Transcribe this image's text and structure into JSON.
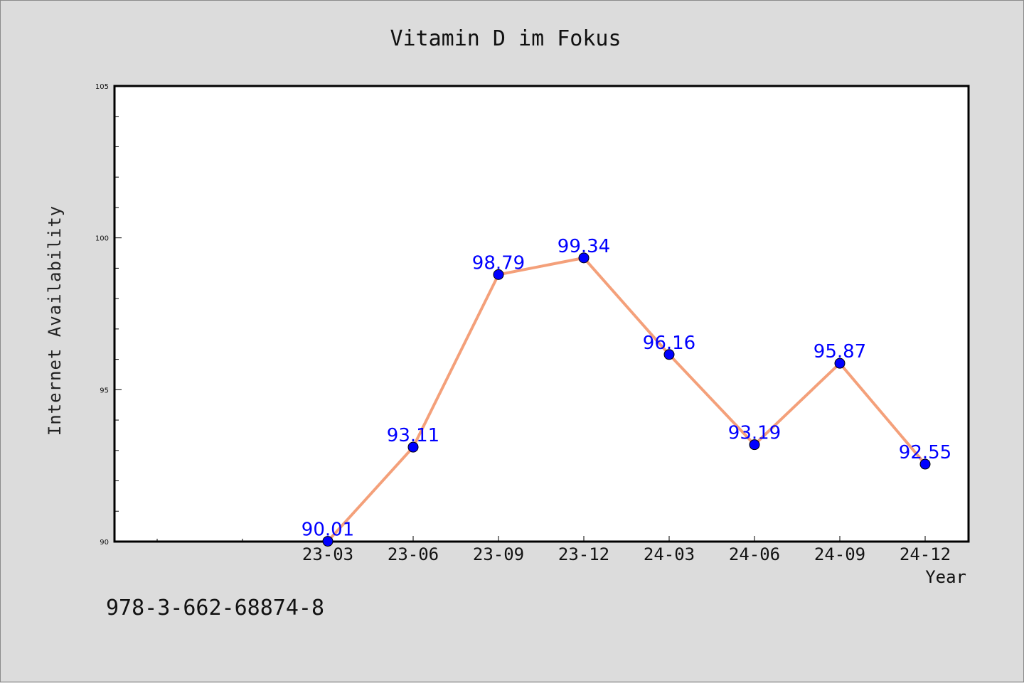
{
  "chart_data": {
    "type": "line",
    "title": "Vitamin D im Fokus",
    "xlabel": "Year",
    "ylabel": "Internet Availability",
    "categories": [
      "23-03",
      "23-06",
      "23-09",
      "23-12",
      "24-03",
      "24-06",
      "24-09",
      "24-12"
    ],
    "series": [
      {
        "values": [
          90.01,
          93.11,
          98.79,
          99.34,
          96.16,
          93.19,
          95.87,
          92.55
        ]
      }
    ],
    "data_labels": [
      "90.01",
      "93.11",
      "98.79",
      "99.34",
      "96.16",
      "93.19",
      "95.87",
      "92.55"
    ],
    "ylim": [
      90,
      105
    ],
    "yticks": [
      "90",
      "95",
      "100",
      "105"
    ],
    "grid": false,
    "legend": "none",
    "colors": {
      "line": "#f4a07a",
      "marker": "#0000ff",
      "label": "#0000ff",
      "background": "#dcdcdc",
      "plot_background": "#ffffff"
    }
  },
  "footer_text": "978-3-662-68874-8"
}
